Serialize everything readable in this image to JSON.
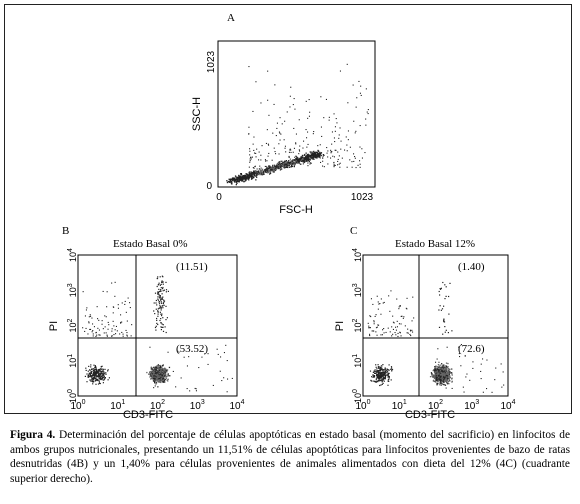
{
  "figure": {
    "panels": [
      {
        "letter": "A",
        "title": "",
        "xlabel": "FSC-H",
        "ylabel": "SSC-H",
        "x_ticks": [
          "0",
          "1023"
        ],
        "y_ticks": [
          "0",
          "1023"
        ],
        "quadrants": [],
        "plot_type": "scatter-density",
        "x_range": [
          0,
          1023
        ],
        "y_range": [
          0,
          1023
        ],
        "cluster": {
          "center_x": 420,
          "center_y": 110,
          "spread": "diagonal"
        }
      },
      {
        "letter": "B",
        "title": "Estado Basal 0%",
        "xlabel": "CD3-FITC",
        "ylabel": "PI",
        "x_ticks": [
          "10",
          "10",
          "10",
          "10",
          "10"
        ],
        "x_exps": [
          "0",
          "1",
          "2",
          "3",
          "4"
        ],
        "y_ticks": [
          "10",
          "10",
          "10",
          "10",
          "10"
        ],
        "y_exps": [
          "0",
          "1",
          "2",
          "3",
          "4"
        ],
        "quadrants": [
          {
            "position": "upper-right",
            "value": "(11.51)"
          },
          {
            "position": "lower-right",
            "value": "(53.52)"
          }
        ],
        "plot_type": "log-quadrant",
        "x_range_decades": [
          0,
          4
        ],
        "y_range_decades": [
          0,
          4
        ]
      },
      {
        "letter": "C",
        "title": "Estado Basal 12%",
        "xlabel": "CD3-FITC",
        "ylabel": "PI",
        "x_ticks": [
          "10",
          "10",
          "10",
          "10",
          "10"
        ],
        "x_exps": [
          "0",
          "1",
          "2",
          "3",
          "4"
        ],
        "y_ticks": [
          "10",
          "10",
          "10",
          "10",
          "10"
        ],
        "y_exps": [
          "0",
          "1",
          "2",
          "3",
          "4"
        ],
        "quadrants": [
          {
            "position": "upper-right",
            "value": "(1.40)"
          },
          {
            "position": "lower-right",
            "value": "(72.6)"
          }
        ],
        "plot_type": "log-quadrant",
        "x_range_decades": [
          0,
          4
        ],
        "y_range_decades": [
          0,
          4
        ]
      }
    ]
  },
  "caption": {
    "label": "Figura 4.",
    "text": " Determinación del porcentaje de células apoptóticas en estado basal (momento del sacrificio) en linfocitos de ambos grupos nutricionales, presentando un 11,51% de células apoptóticas para linfocitos provenientes de bazo de ratas desnutridas (4B) y un 1,40% para células provenientes de animales alimentados con dieta del 12% (4C) (cuadrante superior derecho)."
  },
  "colors": {
    "ink": "#000000",
    "dots": "#222222",
    "dense": "#666666"
  }
}
